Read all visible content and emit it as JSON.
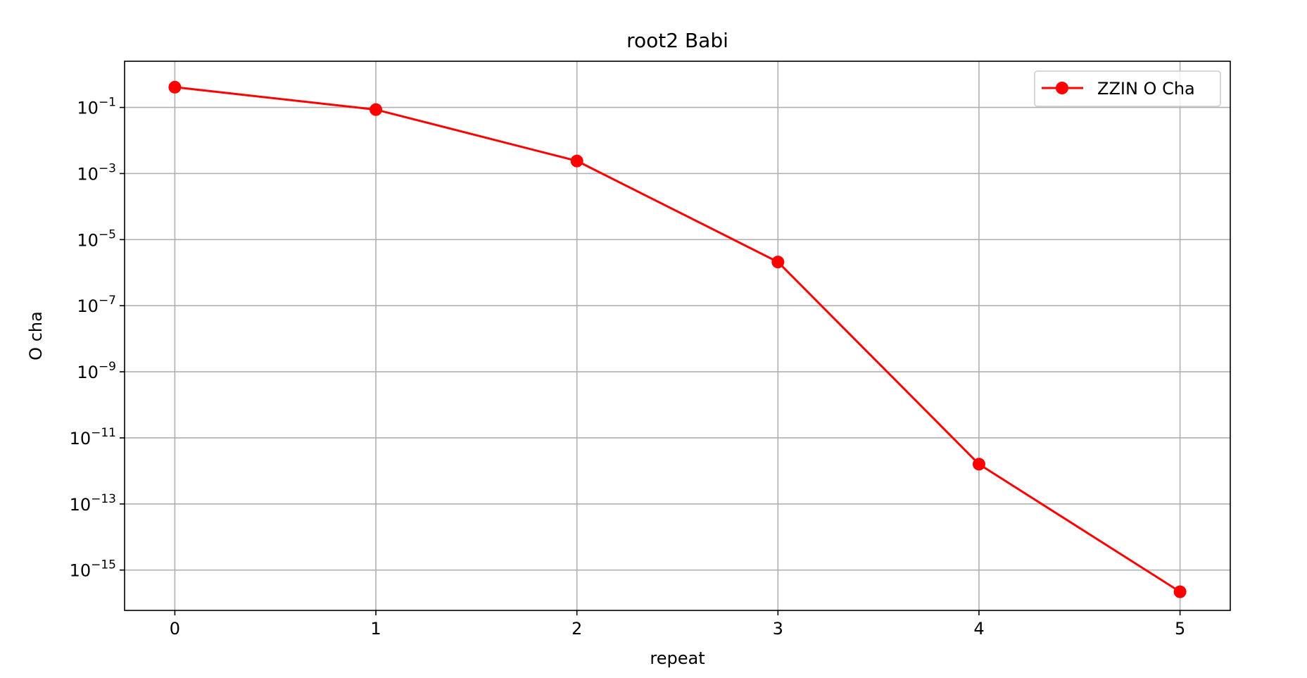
{
  "chart_data": {
    "type": "line",
    "title": "root2 Babi",
    "xlabel": "repeat",
    "ylabel": "O cha",
    "yscale": "log",
    "x_ticks": [
      "0",
      "1",
      "2",
      "3",
      "4",
      "5"
    ],
    "y_ticks": [
      {
        "base": "10",
        "exp": "−1",
        "value": 0.1
      },
      {
        "base": "10",
        "exp": "−3",
        "value": 0.001
      },
      {
        "base": "10",
        "exp": "−5",
        "value": 1e-05
      },
      {
        "base": "10",
        "exp": "−7",
        "value": 1e-07
      },
      {
        "base": "10",
        "exp": "−9",
        "value": 1e-09
      },
      {
        "base": "10",
        "exp": "−11",
        "value": 1e-11
      },
      {
        "base": "10",
        "exp": "−13",
        "value": 1e-13
      },
      {
        "base": "10",
        "exp": "−15",
        "value": 1e-15
      }
    ],
    "xlim": [
      -0.25,
      5.25
    ],
    "ylim": [
      6e-17,
      2.5
    ],
    "grid": true,
    "legend_position": "top-right",
    "series": [
      {
        "name": "ZZIN O Cha",
        "color": "#ff0000",
        "marker": "circle",
        "x": [
          0,
          1,
          2,
          3,
          4,
          5
        ],
        "y": [
          0.41,
          0.086,
          0.0024,
          2.1e-06,
          1.6e-12,
          2.2e-16
        ]
      }
    ]
  }
}
